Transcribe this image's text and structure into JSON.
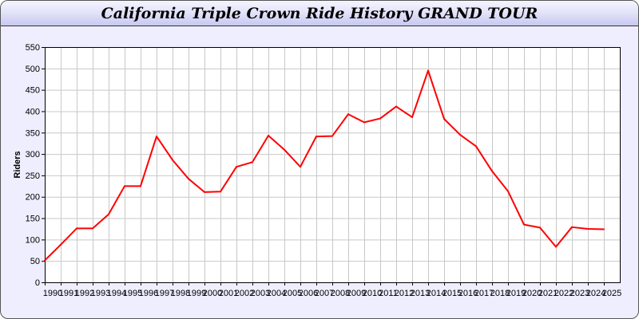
{
  "window": {
    "title": "California Triple Crown Ride History GRAND TOUR"
  },
  "chart_data": {
    "type": "line",
    "title": "California Triple Crown Ride History GRAND TOUR",
    "xlabel": "",
    "ylabel": "Riders",
    "ylim": [
      0,
      550
    ],
    "yticks": [
      0,
      50,
      100,
      150,
      200,
      250,
      300,
      350,
      400,
      450,
      500,
      550
    ],
    "grid": true,
    "line_color": "#ff0000",
    "x": [
      1990,
      1991,
      1992,
      1993,
      1994,
      1995,
      1996,
      1997,
      1998,
      1999,
      2000,
      2001,
      2002,
      2003,
      2004,
      2005,
      2006,
      2007,
      2008,
      2009,
      2010,
      2011,
      2012,
      2013,
      2014,
      2015,
      2016,
      2017,
      2018,
      2019,
      2020,
      2021,
      2022,
      2023,
      2024,
      2025
    ],
    "values": [
      51,
      88,
      126,
      126,
      159,
      225,
      225,
      341,
      286,
      242,
      211,
      212,
      270,
      281,
      343,
      310,
      270,
      341,
      342,
      393,
      374,
      383,
      411,
      386,
      495,
      382,
      345,
      318,
      260,
      213,
      135,
      128,
      83,
      129,
      125,
      124
    ]
  }
}
